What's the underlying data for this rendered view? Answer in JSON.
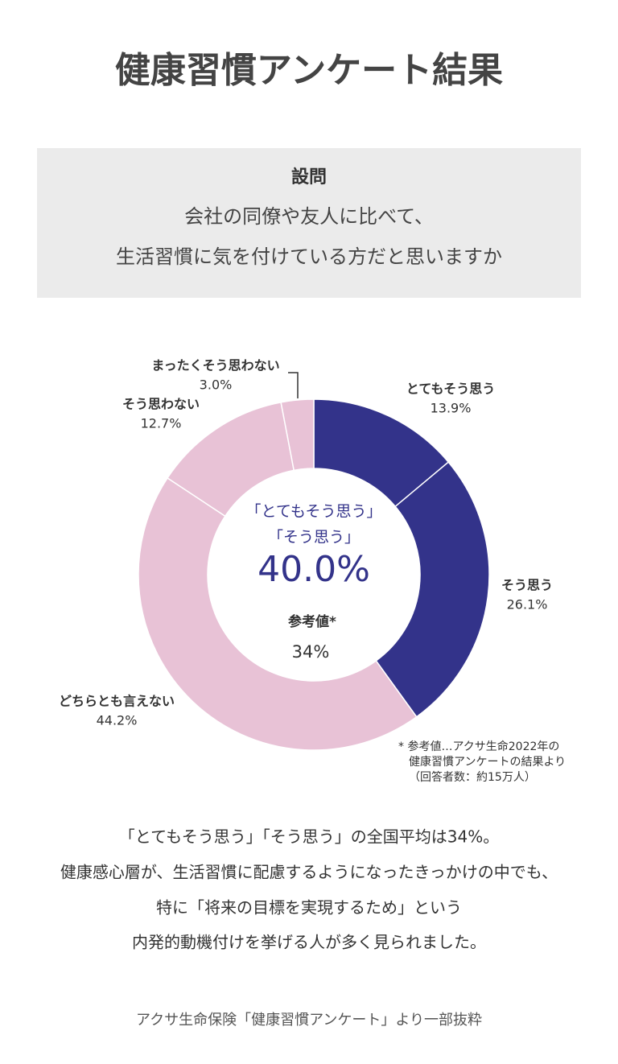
{
  "header": {
    "title": "健康習慣アンケート結果"
  },
  "question": {
    "label": "設問",
    "lines": [
      "会社の同僚や友人に比べて、",
      "生活習慣に気を付けている方だと思いますか"
    ]
  },
  "chart_data": {
    "type": "donut",
    "categories": [
      "とてもそう思う",
      "そう思う",
      "どちらとも言えない",
      "そう思わない",
      "まったくそう思わない"
    ],
    "values": [
      13.9,
      26.1,
      44.2,
      12.7,
      3.0
    ],
    "value_labels": [
      "13.9%",
      "26.1%",
      "44.2%",
      "12.7%",
      "3.0%"
    ],
    "colors": [
      "#33338a",
      "#33338a",
      "#e8c2d6",
      "#e8c2d6",
      "#e8c2d6"
    ],
    "center": {
      "lines": [
        "「とてもそう思う」",
        "「そう思う」"
      ],
      "value": "40.0%",
      "reference_label": "参考値*",
      "reference_value": "34%"
    },
    "note": [
      "* 参考値…アクサ生命2022年の",
      "健康習慣アンケートの結果より",
      "（回答者数：約15万人）"
    ]
  },
  "body": [
    "「とてもそう思う」「そう思う」の全国平均は34%。",
    "健康感心層が、生活習慣に配慮するようになったきっかけの中でも、",
    "特に「将来の目標を実現するため」という",
    "内発的動機付けを挙げる人が多く見られました。"
  ],
  "source": "アクサ生命保険「健康習慣アンケート」より一部抜粋"
}
